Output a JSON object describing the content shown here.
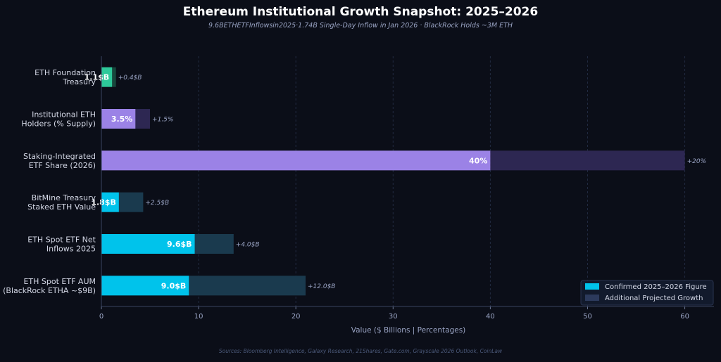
{
  "chart_data": {
    "type": "bar",
    "orientation": "horizontal",
    "title": "Ethereum Institutional Growth Snapshot: 2025–2026",
    "subtitle": "9.6BETHETFInflowsin2025·1.74B Single-Day Inflow in Jan 2026  ·  BlackRock Holds ~3M ETH",
    "xlabel": "Value ($ Billions  |  Percentages)",
    "source": "Sources: Bloomberg Intelligence, Galaxy Research, 21Shares, Gate.com, Grayscale 2026 Outlook, CoinLaw",
    "xlim": [
      0,
      63
    ],
    "xticks": [
      0,
      10,
      20,
      30,
      40,
      50,
      60
    ],
    "grid": "vertical dashed",
    "legend_position": "bottom-right",
    "legend": [
      {
        "label": "Confirmed 2025–2026 Figure",
        "color": "#00c3eb"
      },
      {
        "label": "Additional Projected Growth",
        "color": "#2c3a5c"
      }
    ],
    "categories": [
      [
        "ETH Foundation",
        "Treasury"
      ],
      [
        "Institutional ETH",
        "Holders (% Supply)"
      ],
      [
        "Staking-Integrated",
        "ETF Share (2026)"
      ],
      [
        "BitMine Treasury",
        "Staked ETH Value"
      ],
      [
        "ETH Spot ETF Net",
        "Inflows 2025"
      ],
      [
        "ETH Spot ETF AUM",
        "(BlackRock ETHA ~$9B)"
      ]
    ],
    "confirmed": [
      1.1,
      3.5,
      40,
      1.8,
      9.6,
      9.0
    ],
    "projected": [
      0.4,
      1.5,
      20,
      2.5,
      4.0,
      12.0
    ],
    "value_labels": [
      "1.1$B",
      "3.5%",
      "40%",
      "1.8$B",
      "9.6$B",
      "9.0$B"
    ],
    "growth_labels": [
      "+0.4$B",
      "+1.5%",
      "+20%",
      "+2.5$B",
      "+4.0$B",
      "+12.0$B"
    ],
    "colors": {
      "background": "#0b0e18",
      "confirmed": [
        "#2ec99a",
        "#9b82e6",
        "#9b82e6",
        "#00c3eb",
        "#00c3eb",
        "#00c3eb"
      ],
      "projected": [
        "#17473c",
        "#2d2752",
        "#2d2752",
        "#1a3a4e",
        "#1a3a4e",
        "#1a3a4e"
      ]
    }
  }
}
